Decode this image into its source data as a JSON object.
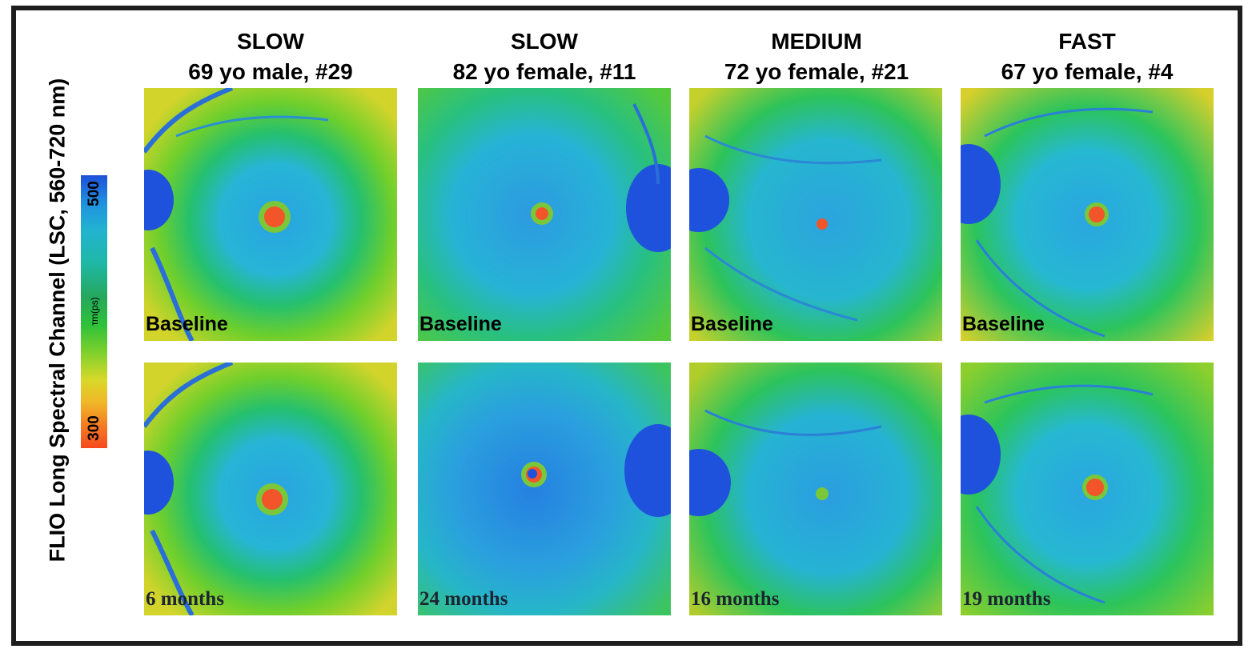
{
  "y_axis_label": "FLIO Long Spectral Channel (LSC, 560-720 nm)",
  "colorbar": {
    "max_label": "500",
    "min_label": "300",
    "unit": "τm(ps)",
    "colors": [
      "#1e4fd8",
      "#22b3d0",
      "#25a85a",
      "#2fc23a",
      "#d9d82a",
      "#f57a22",
      "#f54a1c"
    ]
  },
  "columns": [
    {
      "speed": "SLOW",
      "subject": "69 yo male, #29",
      "baseline": "Baseline",
      "followup": "6 months"
    },
    {
      "speed": "SLOW",
      "subject": "82 yo female, #11",
      "baseline": "Baseline",
      "followup": "24 months"
    },
    {
      "speed": "MEDIUM",
      "subject": "72 yo female, #21",
      "baseline": "Baseline",
      "followup": "16 months"
    },
    {
      "speed": "FAST",
      "subject": "67 yo female, #4",
      "baseline": "Baseline",
      "followup": "19 months"
    }
  ]
}
